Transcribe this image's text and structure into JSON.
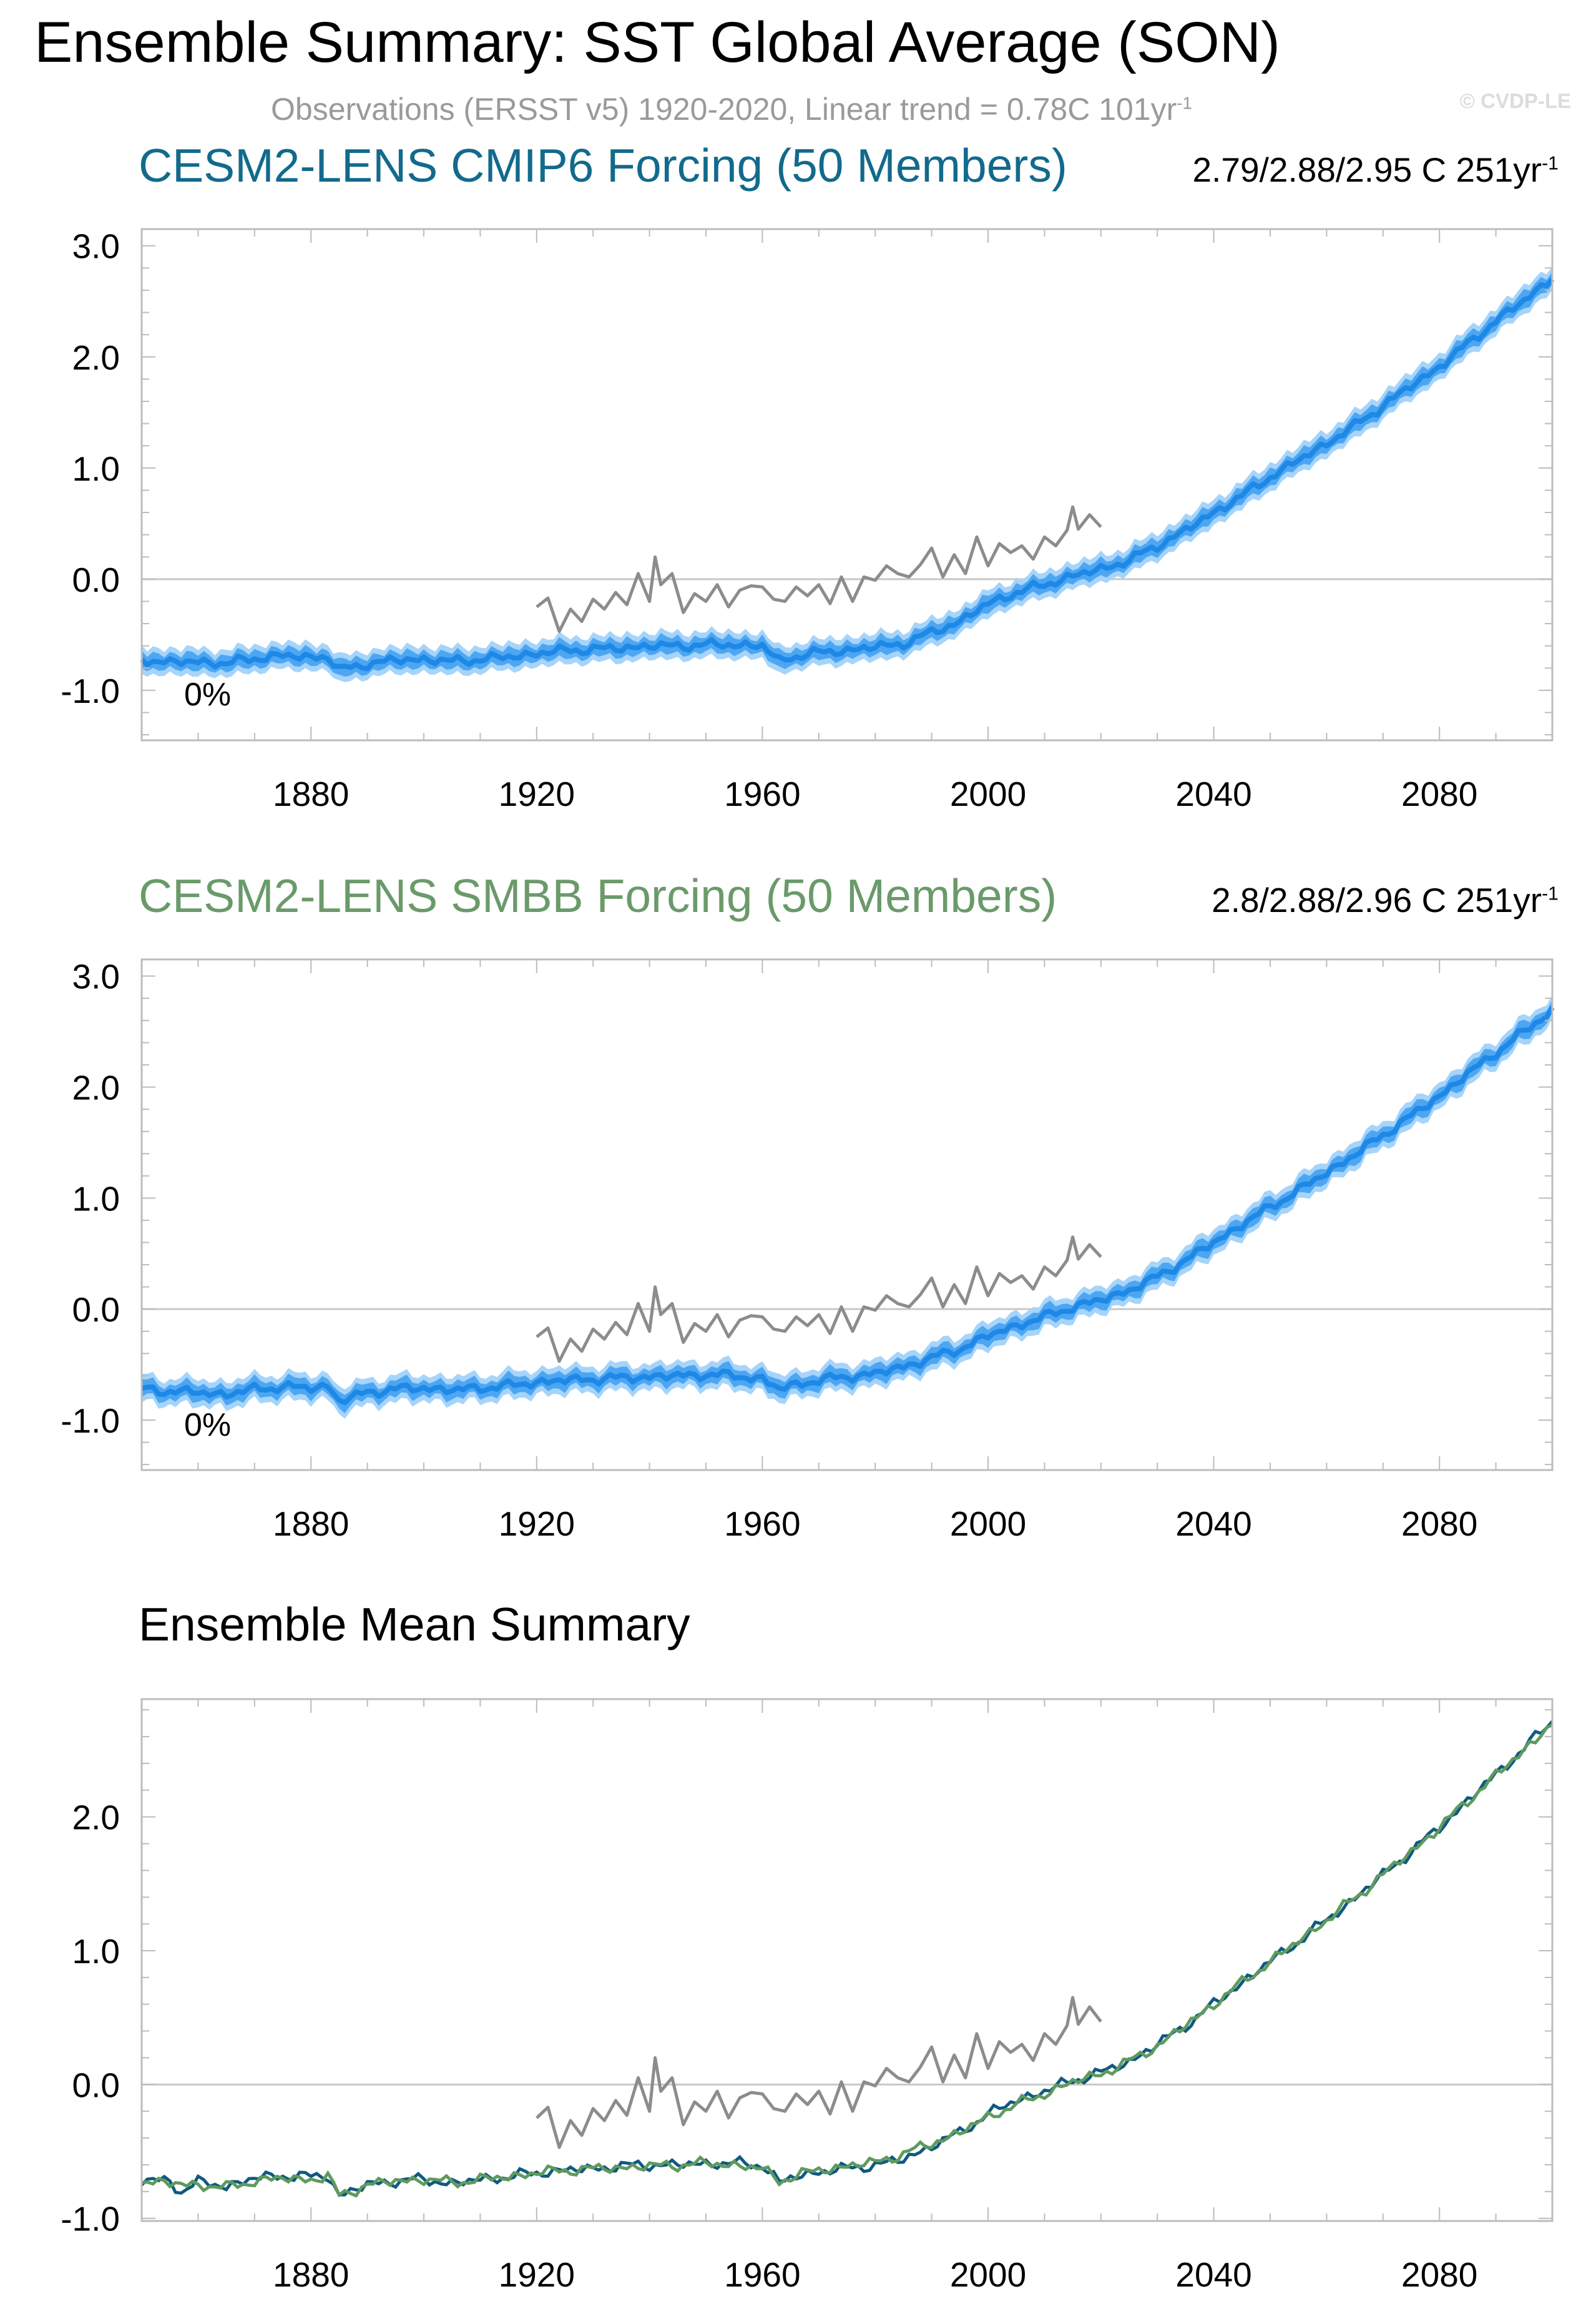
{
  "title": "Ensemble Summary: SST Global Average (SON)",
  "subtitle": {
    "text": "Observations (ERSST v5) 1920-2020, Linear trend = 0.78C 101yr",
    "sup": "-1"
  },
  "copyright": "© CVDP-LE",
  "colors": {
    "model_line": "#1e88e6",
    "inner_band": "#4da6f2",
    "outer_band": "#a6d4fa",
    "observations": "#8c8c8c",
    "cmip6_title": "#126a8c",
    "smbb_title": "#6a9a6a",
    "mean_cmip6": "#0f5a80",
    "mean_smbb": "#5f9a5f",
    "zero_line": "#c8c8c8"
  },
  "panels": [
    {
      "title": "CESM2-LENS CMIP6 Forcing (50 Members)",
      "trend": "2.79/2.88/2.95 C 251yr",
      "trend_sup": "-1",
      "percent_label": "0%"
    },
    {
      "title": "CESM2-LENS SMBB Forcing (50 Members)",
      "trend": "2.8/2.88/2.96 C 251yr",
      "trend_sup": "-1",
      "percent_label": "0%"
    },
    {
      "title": "Ensemble Mean Summary"
    }
  ],
  "chart_data": [
    {
      "type": "line",
      "title": "CESM2-LENS CMIP6 Forcing (50 Members)",
      "xlabel": "",
      "ylabel": "",
      "xlim": [
        1850,
        2100
      ],
      "ylim": [
        -1.45,
        3.15
      ],
      "xticks": [
        1880,
        1920,
        1960,
        2000,
        2040,
        2080
      ],
      "yticks": [
        -1.0,
        0.0,
        1.0,
        2.0,
        3.0
      ],
      "ytick_labels": [
        "-1.0",
        "0.0",
        "1.0",
        "2.0",
        "3.0"
      ],
      "grid": false,
      "zero_line": true,
      "series": [
        {
          "role": "ensemble_mean",
          "x": [
            1850,
            1855,
            1860,
            1865,
            1870,
            1875,
            1880,
            1883,
            1885,
            1890,
            1895,
            1900,
            1905,
            1910,
            1915,
            1920,
            1925,
            1930,
            1935,
            1940,
            1945,
            1950,
            1955,
            1960,
            1963,
            1965,
            1970,
            1975,
            1980,
            1985,
            1990,
            1995,
            2000,
            2005,
            2010,
            2015,
            2020,
            2025,
            2030,
            2035,
            2040,
            2045,
            2050,
            2055,
            2060,
            2065,
            2070,
            2075,
            2080,
            2085,
            2090,
            2095,
            2100
          ],
          "y": [
            -0.72,
            -0.75,
            -0.74,
            -0.76,
            -0.71,
            -0.69,
            -0.7,
            -0.7,
            -0.82,
            -0.76,
            -0.73,
            -0.72,
            -0.74,
            -0.72,
            -0.7,
            -0.67,
            -0.64,
            -0.63,
            -0.62,
            -0.6,
            -0.6,
            -0.59,
            -0.59,
            -0.6,
            -0.74,
            -0.7,
            -0.66,
            -0.64,
            -0.61,
            -0.58,
            -0.48,
            -0.38,
            -0.22,
            -0.12,
            -0.05,
            0.03,
            0.09,
            0.17,
            0.3,
            0.44,
            0.6,
            0.75,
            0.92,
            1.07,
            1.22,
            1.38,
            1.56,
            1.74,
            1.91,
            2.12,
            2.32,
            2.51,
            2.71
          ],
          "spread_inner": 0.07,
          "spread_outer": 0.12
        },
        {
          "role": "observations",
          "name": "Observations (ERSST v5)",
          "x": [
            1920,
            1922,
            1924,
            1926,
            1928,
            1930,
            1932,
            1934,
            1936,
            1938,
            1940,
            1941,
            1942,
            1944,
            1946,
            1948,
            1950,
            1952,
            1954,
            1956,
            1958,
            1960,
            1962,
            1964,
            1966,
            1968,
            1970,
            1972,
            1974,
            1976,
            1978,
            1980,
            1982,
            1984,
            1986,
            1988,
            1990,
            1992,
            1994,
            1996,
            1998,
            2000,
            2002,
            2004,
            2006,
            2008,
            2010,
            2012,
            2014,
            2015,
            2016,
            2018,
            2020
          ],
          "y": [
            -0.25,
            -0.17,
            -0.47,
            -0.27,
            -0.38,
            -0.18,
            -0.27,
            -0.12,
            -0.23,
            0.05,
            -0.2,
            0.2,
            -0.05,
            0.05,
            -0.3,
            -0.13,
            -0.2,
            -0.05,
            -0.25,
            -0.1,
            -0.06,
            -0.07,
            -0.18,
            -0.2,
            -0.07,
            -0.15,
            -0.05,
            -0.22,
            0.02,
            -0.2,
            0.02,
            -0.01,
            0.12,
            0.05,
            0.02,
            0.13,
            0.28,
            0.02,
            0.22,
            0.05,
            0.38,
            0.12,
            0.32,
            0.24,
            0.3,
            0.18,
            0.38,
            0.3,
            0.44,
            0.65,
            0.45,
            0.58,
            0.47
          ]
        }
      ]
    },
    {
      "type": "line",
      "title": "CESM2-LENS SMBB Forcing (50 Members)",
      "xlabel": "",
      "ylabel": "",
      "xlim": [
        1850,
        2100
      ],
      "ylim": [
        -1.45,
        3.15
      ],
      "xticks": [
        1880,
        1920,
        1960,
        2000,
        2040,
        2080
      ],
      "yticks": [
        -1.0,
        0.0,
        1.0,
        2.0,
        3.0
      ],
      "ytick_labels": [
        "-1.0",
        "0.0",
        "1.0",
        "2.0",
        "3.0"
      ],
      "grid": false,
      "zero_line": true,
      "series": [
        {
          "role": "ensemble_mean",
          "x": [
            1850,
            1855,
            1860,
            1865,
            1870,
            1875,
            1880,
            1883,
            1885,
            1890,
            1895,
            1900,
            1905,
            1910,
            1915,
            1920,
            1925,
            1930,
            1935,
            1940,
            1945,
            1950,
            1955,
            1960,
            1963,
            1965,
            1970,
            1975,
            1980,
            1985,
            1990,
            1995,
            2000,
            2005,
            2010,
            2015,
            2020,
            2025,
            2030,
            2035,
            2040,
            2045,
            2050,
            2055,
            2060,
            2065,
            2070,
            2075,
            2080,
            2085,
            2090,
            2095,
            2100
          ],
          "y": [
            -0.72,
            -0.74,
            -0.75,
            -0.77,
            -0.72,
            -0.7,
            -0.71,
            -0.69,
            -0.83,
            -0.75,
            -0.72,
            -0.71,
            -0.73,
            -0.71,
            -0.69,
            -0.66,
            -0.64,
            -0.63,
            -0.62,
            -0.61,
            -0.6,
            -0.59,
            -0.6,
            -0.63,
            -0.72,
            -0.69,
            -0.64,
            -0.61,
            -0.58,
            -0.52,
            -0.44,
            -0.36,
            -0.24,
            -0.15,
            -0.07,
            0.02,
            0.08,
            0.17,
            0.29,
            0.44,
            0.6,
            0.76,
            0.92,
            1.07,
            1.23,
            1.39,
            1.57,
            1.74,
            1.92,
            2.12,
            2.31,
            2.5,
            2.69
          ],
          "spread_inner": 0.07,
          "spread_outer": 0.12
        },
        {
          "role": "observations",
          "name": "Observations (ERSST v5)",
          "x": [
            1920,
            1922,
            1924,
            1926,
            1928,
            1930,
            1932,
            1934,
            1936,
            1938,
            1940,
            1941,
            1942,
            1944,
            1946,
            1948,
            1950,
            1952,
            1954,
            1956,
            1958,
            1960,
            1962,
            1964,
            1966,
            1968,
            1970,
            1972,
            1974,
            1976,
            1978,
            1980,
            1982,
            1984,
            1986,
            1988,
            1990,
            1992,
            1994,
            1996,
            1998,
            2000,
            2002,
            2004,
            2006,
            2008,
            2010,
            2012,
            2014,
            2015,
            2016,
            2018,
            2020
          ],
          "y": [
            -0.25,
            -0.17,
            -0.47,
            -0.27,
            -0.38,
            -0.18,
            -0.27,
            -0.12,
            -0.23,
            0.05,
            -0.2,
            0.2,
            -0.05,
            0.05,
            -0.3,
            -0.13,
            -0.2,
            -0.05,
            -0.25,
            -0.1,
            -0.06,
            -0.07,
            -0.18,
            -0.2,
            -0.07,
            -0.15,
            -0.05,
            -0.22,
            0.02,
            -0.2,
            0.02,
            -0.01,
            0.12,
            0.05,
            0.02,
            0.13,
            0.28,
            0.02,
            0.22,
            0.05,
            0.38,
            0.12,
            0.32,
            0.24,
            0.3,
            0.18,
            0.38,
            0.3,
            0.44,
            0.65,
            0.45,
            0.58,
            0.47
          ]
        }
      ]
    },
    {
      "type": "line",
      "title": "Ensemble Mean Summary",
      "xlabel": "",
      "ylabel": "",
      "xlim": [
        1850,
        2100
      ],
      "ylim": [
        -1.02,
        2.88
      ],
      "xticks": [
        1880,
        1920,
        1960,
        2000,
        2040,
        2080
      ],
      "yticks": [
        -1.0,
        0.0,
        1.0,
        2.0
      ],
      "ytick_labels": [
        "-1.0",
        "0.0",
        "1.0",
        "2.0"
      ],
      "grid": false,
      "zero_line": true,
      "series": [
        {
          "role": "mean_cmip6",
          "x": [
            1850,
            1855,
            1857,
            1860,
            1865,
            1870,
            1875,
            1880,
            1883,
            1885,
            1890,
            1895,
            1900,
            1905,
            1910,
            1915,
            1920,
            1925,
            1930,
            1935,
            1940,
            1945,
            1950,
            1955,
            1960,
            1963,
            1965,
            1970,
            1975,
            1980,
            1985,
            1990,
            1995,
            2000,
            2005,
            2010,
            2015,
            2020,
            2025,
            2030,
            2035,
            2040,
            2045,
            2050,
            2055,
            2060,
            2065,
            2070,
            2075,
            2080,
            2085,
            2090,
            2095,
            2100
          ],
          "y": [
            -0.72,
            -0.72,
            -0.8,
            -0.73,
            -0.76,
            -0.7,
            -0.68,
            -0.69,
            -0.68,
            -0.83,
            -0.75,
            -0.72,
            -0.71,
            -0.74,
            -0.71,
            -0.69,
            -0.66,
            -0.64,
            -0.63,
            -0.61,
            -0.6,
            -0.6,
            -0.59,
            -0.59,
            -0.6,
            -0.73,
            -0.7,
            -0.65,
            -0.63,
            -0.6,
            -0.56,
            -0.46,
            -0.36,
            -0.22,
            -0.12,
            -0.05,
            0.03,
            0.09,
            0.17,
            0.3,
            0.44,
            0.6,
            0.76,
            0.92,
            1.07,
            1.23,
            1.39,
            1.57,
            1.74,
            1.92,
            2.12,
            2.32,
            2.51,
            2.72
          ]
        },
        {
          "role": "mean_smbb",
          "x": [
            1850,
            1855,
            1860,
            1865,
            1870,
            1875,
            1880,
            1883,
            1885,
            1890,
            1895,
            1900,
            1905,
            1910,
            1915,
            1920,
            1925,
            1930,
            1935,
            1940,
            1945,
            1950,
            1955,
            1960,
            1963,
            1965,
            1970,
            1975,
            1980,
            1985,
            1990,
            1995,
            2000,
            2005,
            2010,
            2015,
            2020,
            2025,
            2030,
            2035,
            2040,
            2045,
            2050,
            2055,
            2060,
            2065,
            2070,
            2075,
            2080,
            2085,
            2090,
            2095,
            2100
          ],
          "y": [
            -0.72,
            -0.74,
            -0.75,
            -0.77,
            -0.72,
            -0.7,
            -0.71,
            -0.69,
            -0.83,
            -0.75,
            -0.72,
            -0.71,
            -0.73,
            -0.71,
            -0.69,
            -0.66,
            -0.64,
            -0.63,
            -0.62,
            -0.61,
            -0.6,
            -0.59,
            -0.6,
            -0.63,
            -0.72,
            -0.69,
            -0.64,
            -0.61,
            -0.58,
            -0.52,
            -0.44,
            -0.36,
            -0.24,
            -0.15,
            -0.07,
            0.02,
            0.08,
            0.17,
            0.29,
            0.44,
            0.6,
            0.76,
            0.92,
            1.07,
            1.23,
            1.39,
            1.57,
            1.74,
            1.92,
            2.12,
            2.31,
            2.5,
            2.7
          ]
        },
        {
          "role": "observations",
          "name": "Observations (ERSST v5)",
          "x": [
            1920,
            1922,
            1924,
            1926,
            1928,
            1930,
            1932,
            1934,
            1936,
            1938,
            1940,
            1941,
            1942,
            1944,
            1946,
            1948,
            1950,
            1952,
            1954,
            1956,
            1958,
            1960,
            1962,
            1964,
            1966,
            1968,
            1970,
            1972,
            1974,
            1976,
            1978,
            1980,
            1982,
            1984,
            1986,
            1988,
            1990,
            1992,
            1994,
            1996,
            1998,
            2000,
            2002,
            2004,
            2006,
            2008,
            2010,
            2012,
            2014,
            2015,
            2016,
            2018,
            2020
          ],
          "y": [
            -0.25,
            -0.17,
            -0.47,
            -0.27,
            -0.38,
            -0.18,
            -0.27,
            -0.12,
            -0.23,
            0.05,
            -0.2,
            0.2,
            -0.05,
            0.05,
            -0.3,
            -0.13,
            -0.2,
            -0.05,
            -0.25,
            -0.1,
            -0.06,
            -0.07,
            -0.18,
            -0.2,
            -0.07,
            -0.15,
            -0.05,
            -0.22,
            0.02,
            -0.2,
            0.02,
            -0.01,
            0.12,
            0.05,
            0.02,
            0.13,
            0.28,
            0.02,
            0.22,
            0.05,
            0.38,
            0.12,
            0.32,
            0.24,
            0.3,
            0.18,
            0.38,
            0.3,
            0.44,
            0.65,
            0.45,
            0.58,
            0.47
          ]
        }
      ]
    }
  ]
}
